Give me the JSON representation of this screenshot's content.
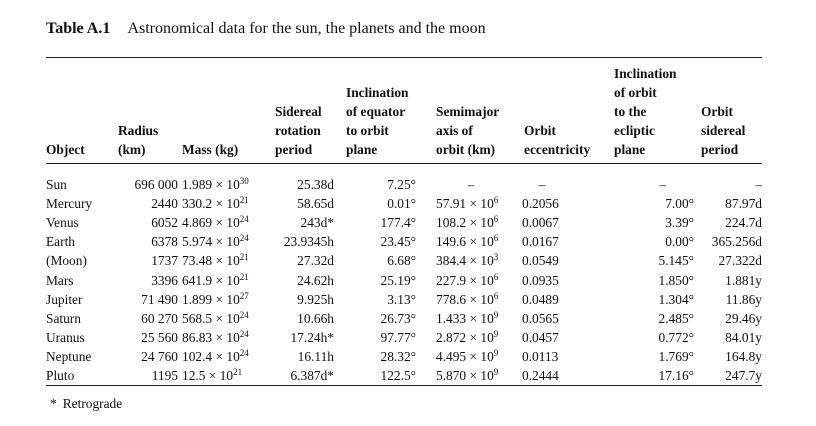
{
  "caption": {
    "number": "Table A.1",
    "title": "Astronomical data for the sun, the planets and the moon"
  },
  "headers": {
    "object": "Object",
    "radius": "Radius\n(km)",
    "mass": "Mass (kg)",
    "sidereal_rotation": "Sidereal\nrotation\nperiod",
    "inclination_equator": "Inclination\nof equator\nto orbit\nplane",
    "semimajor": "Semimajor\naxis of\norbit (km)",
    "eccentricity": "Orbit\neccentricity",
    "inclination_orbit": "Inclination\nof orbit\nto the\necliptic\nplane",
    "orbit_period": "Orbit\nsidereal\nperiod"
  },
  "rows": [
    {
      "object": "Sun",
      "radius": "696 000",
      "mass_base": "1.989 × 10",
      "mass_exp": "30",
      "rotation": "25.38d",
      "incl_eq": "7.25°",
      "axis_base": "–",
      "axis_exp": "",
      "ecc": "–",
      "incl_orbit": "–",
      "period": "–"
    },
    {
      "object": "Mercury",
      "radius": "2440",
      "mass_base": "330.2 × 10",
      "mass_exp": "21",
      "rotation": "58.65d",
      "incl_eq": "0.01°",
      "axis_base": "57.91 × 10",
      "axis_exp": "6",
      "ecc": "0.2056",
      "incl_orbit": "7.00°",
      "period": "87.97d"
    },
    {
      "object": "Venus",
      "radius": "6052",
      "mass_base": "4.869 × 10",
      "mass_exp": "24",
      "rotation": "243d*",
      "incl_eq": "177.4°",
      "axis_base": "108.2 × 10",
      "axis_exp": "6",
      "ecc": "0.0067",
      "incl_orbit": "3.39°",
      "period": "224.7d"
    },
    {
      "object": "Earth",
      "radius": "6378",
      "mass_base": "5.974 × 10",
      "mass_exp": "24",
      "rotation": "23.9345h",
      "incl_eq": "23.45°",
      "axis_base": "149.6 × 10",
      "axis_exp": "6",
      "ecc": "0.0167",
      "incl_orbit": "0.00°",
      "period": "365.256d"
    },
    {
      "object": "(Moon)",
      "radius": "1737",
      "mass_base": "73.48 × 10",
      "mass_exp": "21",
      "rotation": "27.32d",
      "incl_eq": "6.68°",
      "axis_base": "384.4 × 10",
      "axis_exp": "3",
      "ecc": "0.0549",
      "incl_orbit": "5.145°",
      "period": "27.322d"
    },
    {
      "object": "Mars",
      "radius": "3396",
      "mass_base": "641.9 × 10",
      "mass_exp": "21",
      "rotation": "24.62h",
      "incl_eq": "25.19°",
      "axis_base": "227.9 × 10",
      "axis_exp": "6",
      "ecc": "0.0935",
      "incl_orbit": "1.850°",
      "period": "1.881y"
    },
    {
      "object": "Jupiter",
      "radius": "71 490",
      "mass_base": "1.899 × 10",
      "mass_exp": "27",
      "rotation": "9.925h",
      "incl_eq": "3.13°",
      "axis_base": "778.6 × 10",
      "axis_exp": "6",
      "ecc": "0.0489",
      "incl_orbit": "1.304°",
      "period": "11.86y"
    },
    {
      "object": "Saturn",
      "radius": "60 270",
      "mass_base": "568.5 × 10",
      "mass_exp": "24",
      "rotation": "10.66h",
      "incl_eq": "26.73°",
      "axis_base": "1.433 × 10",
      "axis_exp": "9",
      "ecc": "0.0565",
      "incl_orbit": "2.485°",
      "period": "29.46y"
    },
    {
      "object": "Uranus",
      "radius": "25 560",
      "mass_base": "86.83 × 10",
      "mass_exp": "24",
      "rotation": "17.24h*",
      "incl_eq": "97.77°",
      "axis_base": "2.872 × 10",
      "axis_exp": "9",
      "ecc": "0.0457",
      "incl_orbit": "0.772°",
      "period": "84.01y"
    },
    {
      "object": "Neptune",
      "radius": "24 760",
      "mass_base": "102.4 × 10",
      "mass_exp": "24",
      "rotation": "16.11h",
      "incl_eq": "28.32°",
      "axis_base": "4.495 × 10",
      "axis_exp": "9",
      "ecc": "0.0113",
      "incl_orbit": "1.769°",
      "period": "164.8y"
    },
    {
      "object": "Pluto",
      "radius": "1195",
      "mass_base": "12.5 × 10",
      "mass_exp": "21",
      "rotation": "6.387d*",
      "incl_eq": "122.5°",
      "axis_base": "5.870 × 10",
      "axis_exp": "9",
      "ecc": "0.2444",
      "incl_orbit": "17.16°",
      "period": "247.7y"
    }
  ],
  "footnote": {
    "symbol": "*",
    "text": "Retrograde"
  }
}
